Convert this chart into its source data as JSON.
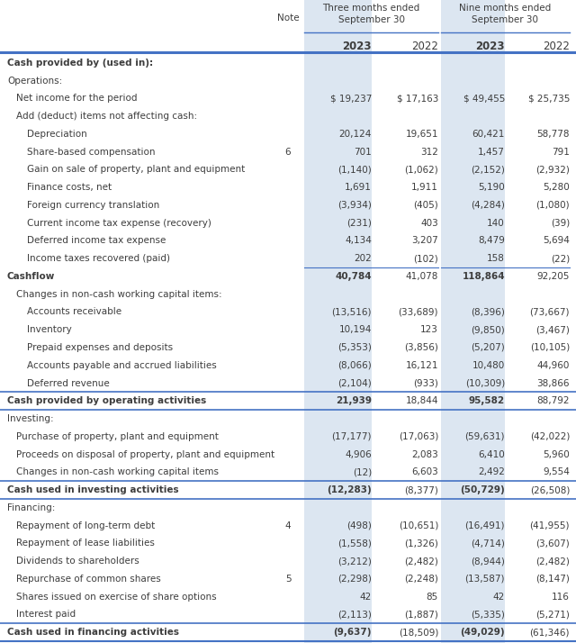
{
  "bg_color": "#ffffff",
  "header_color": "#4472c4",
  "shaded_col_color": "#dce6f1",
  "text_color": "#3d3d3d",
  "rows": [
    {
      "label": "Cash provided by (used in):",
      "note": "",
      "v1": "",
      "v2": "",
      "v3": "",
      "v4": "",
      "level": 0,
      "bold": true,
      "subtotal": false,
      "total": false
    },
    {
      "label": "Operations:",
      "note": "",
      "v1": "",
      "v2": "",
      "v3": "",
      "v4": "",
      "level": 0,
      "bold": false,
      "subtotal": false,
      "total": false
    },
    {
      "label": "Net income for the period",
      "note": "",
      "v1": "$ 19,237",
      "v2": "$ 17,163",
      "v3": "$ 49,455",
      "v4": "$ 25,735",
      "level": 1,
      "bold": false,
      "subtotal": false,
      "total": false
    },
    {
      "label": "Add (deduct) items not affecting cash:",
      "note": "",
      "v1": "",
      "v2": "",
      "v3": "",
      "v4": "",
      "level": 1,
      "bold": false,
      "subtotal": false,
      "total": false
    },
    {
      "label": "Depreciation",
      "note": "",
      "v1": "20,124",
      "v2": "19,651",
      "v3": "60,421",
      "v4": "58,778",
      "level": 2,
      "bold": false,
      "subtotal": false,
      "total": false
    },
    {
      "label": "Share-based compensation",
      "note": "6",
      "v1": "701",
      "v2": "312",
      "v3": "1,457",
      "v4": "791",
      "level": 2,
      "bold": false,
      "subtotal": false,
      "total": false
    },
    {
      "label": "Gain on sale of property, plant and equipment",
      "note": "",
      "v1": "(1,140)",
      "v2": "(1,062)",
      "v3": "(2,152)",
      "v4": "(2,932)",
      "level": 2,
      "bold": false,
      "subtotal": false,
      "total": false
    },
    {
      "label": "Finance costs, net",
      "note": "",
      "v1": "1,691",
      "v2": "1,911",
      "v3": "5,190",
      "v4": "5,280",
      "level": 2,
      "bold": false,
      "subtotal": false,
      "total": false
    },
    {
      "label": "Foreign currency translation",
      "note": "",
      "v1": "(3,934)",
      "v2": "(405)",
      "v3": "(4,284)",
      "v4": "(1,080)",
      "level": 2,
      "bold": false,
      "subtotal": false,
      "total": false
    },
    {
      "label": "Current income tax expense (recovery)",
      "note": "",
      "v1": "(231)",
      "v2": "403",
      "v3": "140",
      "v4": "(39)",
      "level": 2,
      "bold": false,
      "subtotal": false,
      "total": false
    },
    {
      "label": "Deferred income tax expense",
      "note": "",
      "v1": "4,134",
      "v2": "3,207",
      "v3": "8,479",
      "v4": "5,694",
      "level": 2,
      "bold": false,
      "subtotal": false,
      "total": false
    },
    {
      "label": "Income taxes recovered (paid)",
      "note": "",
      "v1": "202",
      "v2": "(102)",
      "v3": "158",
      "v4": "(22)",
      "level": 2,
      "bold": false,
      "subtotal": false,
      "total": false
    },
    {
      "label": "Cashflow",
      "note": "",
      "v1": "40,784",
      "v2": "41,078",
      "v3": "118,864",
      "v4": "92,205",
      "level": 0,
      "bold": true,
      "subtotal": true,
      "total": false
    },
    {
      "label": "Changes in non-cash working capital items:",
      "note": "",
      "v1": "",
      "v2": "",
      "v3": "",
      "v4": "",
      "level": 1,
      "bold": false,
      "subtotal": false,
      "total": false
    },
    {
      "label": "Accounts receivable",
      "note": "",
      "v1": "(13,516)",
      "v2": "(33,689)",
      "v3": "(8,396)",
      "v4": "(73,667)",
      "level": 2,
      "bold": false,
      "subtotal": false,
      "total": false
    },
    {
      "label": "Inventory",
      "note": "",
      "v1": "10,194",
      "v2": "123",
      "v3": "(9,850)",
      "v4": "(3,467)",
      "level": 2,
      "bold": false,
      "subtotal": false,
      "total": false
    },
    {
      "label": "Prepaid expenses and deposits",
      "note": "",
      "v1": "(5,353)",
      "v2": "(3,856)",
      "v3": "(5,207)",
      "v4": "(10,105)",
      "level": 2,
      "bold": false,
      "subtotal": false,
      "total": false
    },
    {
      "label": "Accounts payable and accrued liabilities",
      "note": "",
      "v1": "(8,066)",
      "v2": "16,121",
      "v3": "10,480",
      "v4": "44,960",
      "level": 2,
      "bold": false,
      "subtotal": false,
      "total": false
    },
    {
      "label": "Deferred revenue",
      "note": "",
      "v1": "(2,104)",
      "v2": "(933)",
      "v3": "(10,309)",
      "v4": "38,866",
      "level": 2,
      "bold": false,
      "subtotal": false,
      "total": false
    },
    {
      "label": "Cash provided by operating activities",
      "note": "",
      "v1": "21,939",
      "v2": "18,844",
      "v3": "95,582",
      "v4": "88,792",
      "level": 0,
      "bold": true,
      "subtotal": false,
      "total": true
    },
    {
      "label": "Investing:",
      "note": "",
      "v1": "",
      "v2": "",
      "v3": "",
      "v4": "",
      "level": 0,
      "bold": false,
      "subtotal": false,
      "total": false
    },
    {
      "label": "Purchase of property, plant and equipment",
      "note": "",
      "v1": "(17,177)",
      "v2": "(17,063)",
      "v3": "(59,631)",
      "v4": "(42,022)",
      "level": 1,
      "bold": false,
      "subtotal": false,
      "total": false
    },
    {
      "label": "Proceeds on disposal of property, plant and equipment",
      "note": "",
      "v1": "4,906",
      "v2": "2,083",
      "v3": "6,410",
      "v4": "5,960",
      "level": 1,
      "bold": false,
      "subtotal": false,
      "total": false
    },
    {
      "label": "Changes in non-cash working capital items",
      "note": "",
      "v1": "(12)",
      "v2": "6,603",
      "v3": "2,492",
      "v4": "9,554",
      "level": 1,
      "bold": false,
      "subtotal": false,
      "total": false
    },
    {
      "label": "Cash used in investing activities",
      "note": "",
      "v1": "(12,283)",
      "v2": "(8,377)",
      "v3": "(50,729)",
      "v4": "(26,508)",
      "level": 0,
      "bold": true,
      "subtotal": false,
      "total": true
    },
    {
      "label": "Financing:",
      "note": "",
      "v1": "",
      "v2": "",
      "v3": "",
      "v4": "",
      "level": 0,
      "bold": false,
      "subtotal": false,
      "total": false
    },
    {
      "label": "Repayment of long-term debt",
      "note": "4",
      "v1": "(498)",
      "v2": "(10,651)",
      "v3": "(16,491)",
      "v4": "(41,955)",
      "level": 1,
      "bold": false,
      "subtotal": false,
      "total": false
    },
    {
      "label": "Repayment of lease liabilities",
      "note": "",
      "v1": "(1,558)",
      "v2": "(1,326)",
      "v3": "(4,714)",
      "v4": "(3,607)",
      "level": 1,
      "bold": false,
      "subtotal": false,
      "total": false
    },
    {
      "label": "Dividends to shareholders",
      "note": "",
      "v1": "(3,212)",
      "v2": "(2,482)",
      "v3": "(8,944)",
      "v4": "(2,482)",
      "level": 1,
      "bold": false,
      "subtotal": false,
      "total": false
    },
    {
      "label": "Repurchase of common shares",
      "note": "5",
      "v1": "(2,298)",
      "v2": "(2,248)",
      "v3": "(13,587)",
      "v4": "(8,147)",
      "level": 1,
      "bold": false,
      "subtotal": false,
      "total": false
    },
    {
      "label": "Shares issued on exercise of share options",
      "note": "",
      "v1": "42",
      "v2": "85",
      "v3": "42",
      "v4": "116",
      "level": 1,
      "bold": false,
      "subtotal": false,
      "total": false
    },
    {
      "label": "Interest paid",
      "note": "",
      "v1": "(2,113)",
      "v2": "(1,887)",
      "v3": "(5,335)",
      "v4": "(5,271)",
      "level": 1,
      "bold": false,
      "subtotal": false,
      "total": false
    },
    {
      "label": "Cash used in financing activities",
      "note": "",
      "v1": "(9,637)",
      "v2": "(18,509)",
      "v3": "(49,029)",
      "v4": "(61,346)",
      "level": 0,
      "bold": true,
      "subtotal": false,
      "total": true
    }
  ]
}
